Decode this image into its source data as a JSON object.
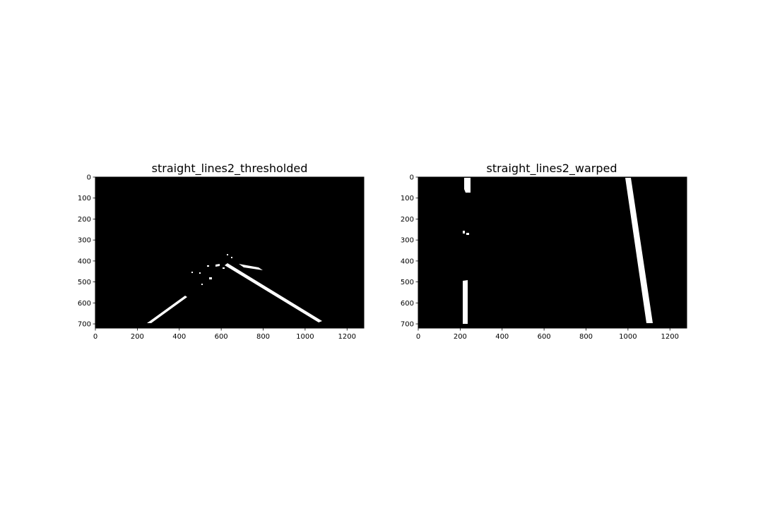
{
  "figure": {
    "background": "#ffffff",
    "image_background": "#000000",
    "mark_color": "#ffffff"
  },
  "panels": [
    {
      "title": "straight_lines2_thresholded",
      "xticks": [
        0,
        200,
        400,
        600,
        800,
        1000,
        1200
      ],
      "yticks": [
        0,
        100,
        200,
        300,
        400,
        500,
        600,
        700
      ],
      "xlim": [
        0,
        1280
      ],
      "ylim": [
        720,
        0
      ]
    },
    {
      "title": "straight_lines2_warped",
      "xticks": [
        0,
        200,
        400,
        600,
        800,
        1000,
        1200
      ],
      "yticks": [
        0,
        100,
        200,
        300,
        400,
        500,
        600,
        700
      ],
      "xlim": [
        0,
        1280
      ],
      "ylim": [
        720,
        0
      ]
    }
  ]
}
